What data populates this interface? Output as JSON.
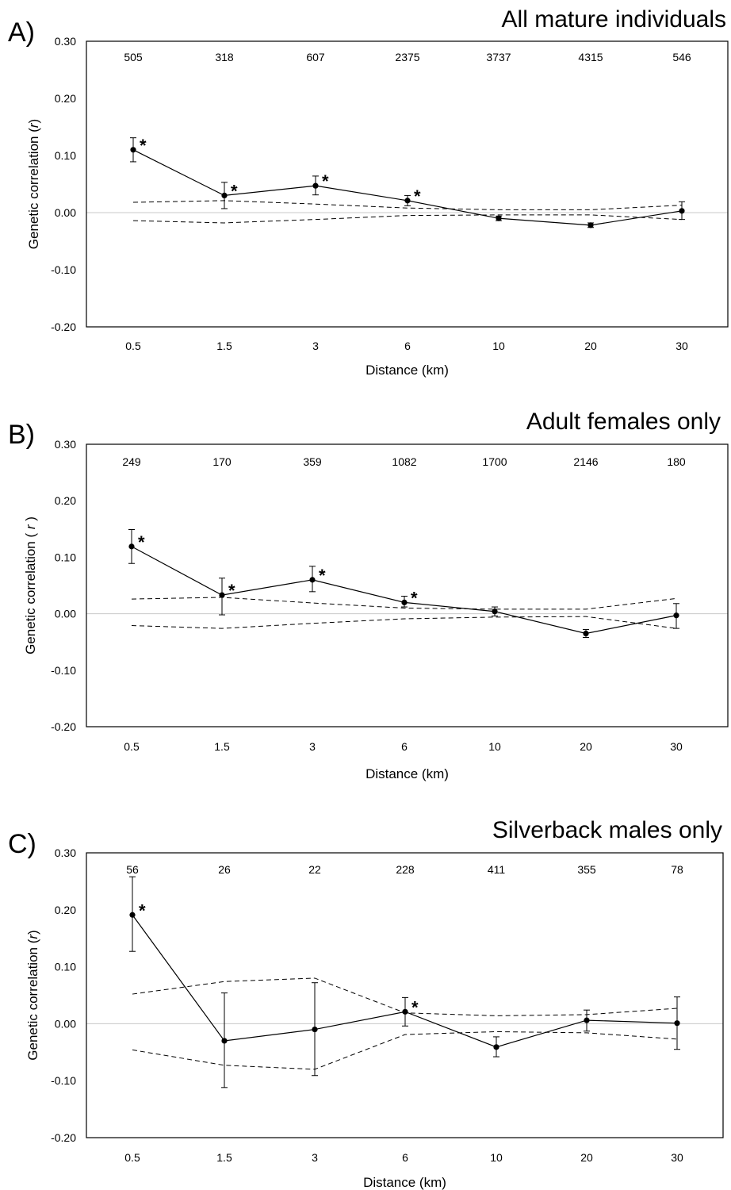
{
  "chart_data": [
    {
      "type": "line",
      "panel": "A)",
      "title": "All mature individuals",
      "xlabel": "Distance (km)",
      "ylabel": "Genetic correlation (r)",
      "ylabel_plain": "Genetic correlation (",
      "ylabel_italic": "r",
      "ylabel_close": ")",
      "categories": [
        "0.5",
        "1.5",
        "3",
        "6",
        "10",
        "20",
        "30"
      ],
      "counts": [
        "505",
        "318",
        "607",
        "2375",
        "3737",
        "4315",
        "546"
      ],
      "yticks": [
        "0.30",
        "0.20",
        "0.10",
        "0.00",
        "-0.10",
        "-0.20"
      ],
      "ylim": [
        -0.2,
        0.3
      ],
      "values": [
        0.11,
        0.03,
        0.047,
        0.021,
        -0.01,
        -0.022,
        0.003
      ],
      "err_upper": [
        0.131,
        0.053,
        0.064,
        0.03,
        -0.006,
        -0.018,
        0.019
      ],
      "err_lower": [
        0.089,
        0.007,
        0.031,
        0.012,
        -0.014,
        -0.026,
        -0.012
      ],
      "significant": [
        true,
        true,
        true,
        true,
        false,
        false,
        false
      ],
      "ci_upper": [
        0.018,
        0.021,
        0.015,
        0.008,
        0.005,
        0.005,
        0.013
      ],
      "ci_lower": [
        -0.014,
        -0.018,
        -0.012,
        -0.005,
        -0.004,
        -0.004,
        -0.012
      ],
      "star_label": "*",
      "grid": false
    },
    {
      "type": "line",
      "panel": "B)",
      "title": "Adult females only",
      "xlabel": "Distance (km)",
      "ylabel": "Genetic correlation ( r )",
      "ylabel_plain": "Genetic correlation ( ",
      "ylabel_italic": "r",
      "ylabel_close": " )",
      "categories": [
        "0.5",
        "1.5",
        "3",
        "6",
        "10",
        "20",
        "30"
      ],
      "counts": [
        "249",
        "170",
        "359",
        "1082",
        "1700",
        "2146",
        "180"
      ],
      "yticks": [
        "0.30",
        "0.20",
        "0.10",
        "0.00",
        "-0.10",
        "-0.20"
      ],
      "ylim": [
        -0.2,
        0.3
      ],
      "values": [
        0.119,
        0.033,
        0.06,
        0.02,
        0.004,
        -0.035,
        -0.003
      ],
      "err_upper": [
        0.149,
        0.063,
        0.084,
        0.031,
        0.012,
        -0.028,
        0.018
      ],
      "err_lower": [
        0.089,
        -0.002,
        0.039,
        0.012,
        -0.004,
        -0.042,
        -0.026
      ],
      "significant": [
        true,
        true,
        true,
        true,
        false,
        false,
        false
      ],
      "ci_upper": [
        0.026,
        0.029,
        0.019,
        0.01,
        0.008,
        0.008,
        0.027
      ],
      "ci_lower": [
        -0.021,
        -0.026,
        -0.017,
        -0.009,
        -0.006,
        -0.005,
        -0.026
      ],
      "star_label": "*",
      "grid": false
    },
    {
      "type": "line",
      "panel": "C)",
      "title": "Silverback males only",
      "xlabel": "Distance (km)",
      "ylabel": "Genetic correlation (r)",
      "ylabel_plain": "Genetic correlation (",
      "ylabel_italic": "r",
      "ylabel_close": ")",
      "categories": [
        "0.5",
        "1.5",
        "3",
        "6",
        "10",
        "20",
        "30"
      ],
      "counts": [
        "56",
        "26",
        "22",
        "228",
        "411",
        "355",
        "78"
      ],
      "yticks": [
        "0.30",
        "0.20",
        "0.10",
        "0.00",
        "-0.10",
        "-0.20"
      ],
      "ylim": [
        -0.2,
        0.3
      ],
      "values": [
        0.191,
        -0.03,
        -0.01,
        0.021,
        -0.041,
        0.006,
        0.001
      ],
      "err_upper": [
        0.258,
        0.054,
        0.072,
        0.046,
        -0.023,
        0.024,
        0.047
      ],
      "err_lower": [
        0.127,
        -0.112,
        -0.091,
        -0.004,
        -0.058,
        -0.013,
        -0.045
      ],
      "significant": [
        true,
        false,
        false,
        true,
        false,
        false,
        false
      ],
      "ci_upper": [
        0.052,
        0.074,
        0.08,
        0.019,
        0.014,
        0.016,
        0.027
      ],
      "ci_lower": [
        -0.046,
        -0.073,
        -0.08,
        -0.019,
        -0.014,
        -0.016,
        -0.027
      ],
      "star_label": "*",
      "grid": false
    }
  ]
}
